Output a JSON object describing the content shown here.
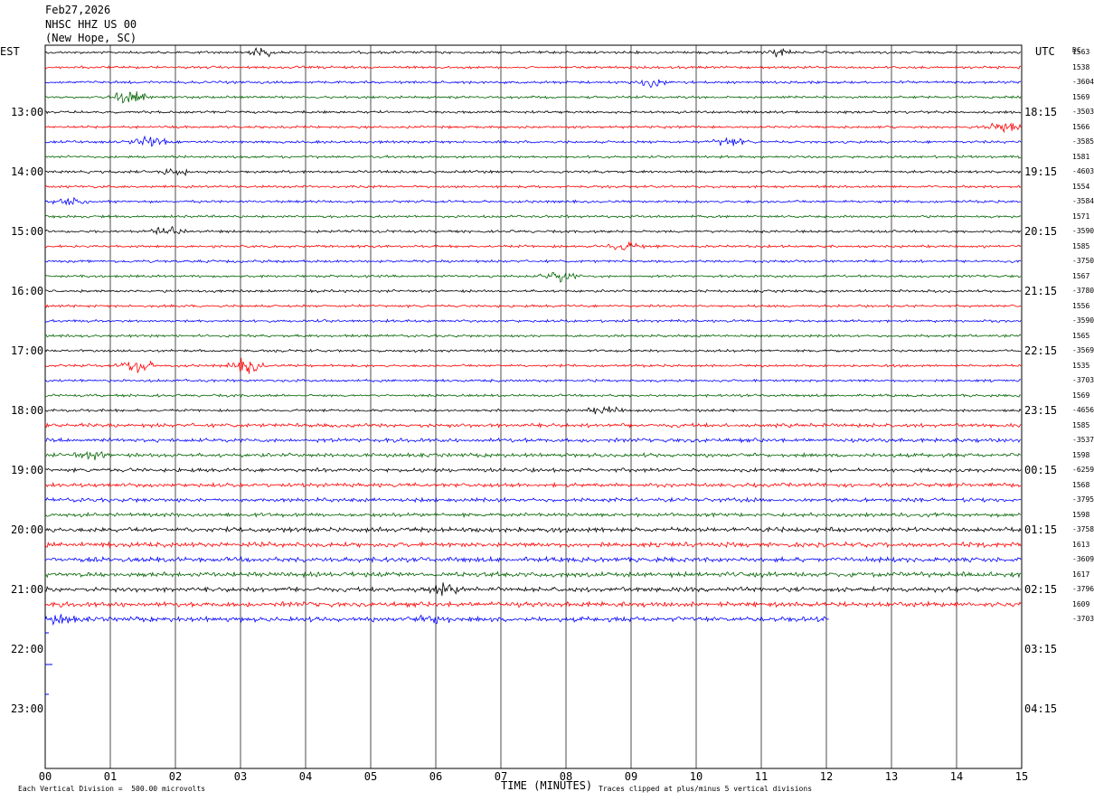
{
  "header": {
    "date": "Feb27,2026",
    "station": "NHSC HHZ US 00",
    "location": "(New Hope, SC)"
  },
  "labels": {
    "left_tz": "EST",
    "right_tz": "UTC",
    "dc": "DC"
  },
  "footer": {
    "scale": "Each Vertical Division =  500.00 microvolts",
    "xlabel": "TIME (MINUTES)",
    "clip": "Traces clipped at plus/minus 5 vertical divisions"
  },
  "colors": {
    "traces": [
      "#000000",
      "#ff0000",
      "#0000ff",
      "#006400"
    ],
    "grid": "#000000"
  },
  "chart_data": {
    "type": "line",
    "title": "NHSC HHZ US 00 (New Hope, SC)",
    "xlabel": "TIME (MINUTES)",
    "ylabel": "",
    "xlim": [
      0,
      15
    ],
    "x_ticks": [
      "00",
      "01",
      "02",
      "03",
      "04",
      "05",
      "06",
      "07",
      "08",
      "09",
      "10",
      "11",
      "12",
      "13",
      "14",
      "15"
    ],
    "left_hours": [
      "13:00",
      "14:00",
      "15:00",
      "16:00",
      "17:00",
      "18:00",
      "19:00",
      "20:00",
      "21:00",
      "22:00",
      "23:00"
    ],
    "right_hours": [
      "18:15",
      "19:15",
      "20:15",
      "21:15",
      "22:15",
      "23:15",
      "00:15",
      "01:15",
      "02:15",
      "03:15",
      "04:15"
    ],
    "dc_values": [
      "1563",
      "1538",
      "-3604",
      "1569",
      "-3503",
      "1566",
      "-3585",
      "1581",
      "-4603",
      "1554",
      "-3584",
      "1571",
      "-3590",
      "1585",
      "-3750",
      "1567",
      "-3780",
      "1556",
      "-3590",
      "1565",
      "-3569",
      "1535",
      "-3703",
      "1569",
      "-4656",
      "1585",
      "-3537",
      "1598",
      "-6259",
      "1568",
      "-3795",
      "1598",
      "-3758",
      "1613",
      "-3609",
      "1617",
      "-3796",
      "1609",
      "-3703"
    ],
    "row_count_full": 38,
    "last_row_end_minute": 12.05,
    "grid": true,
    "events": [
      {
        "row": 0,
        "minute": 3.3,
        "strength": 1.6
      },
      {
        "row": 0,
        "minute": 11.2,
        "strength": 1.5
      },
      {
        "row": 2,
        "minute": 9.3,
        "strength": 1.6
      },
      {
        "row": 3,
        "minute": 1.3,
        "strength": 2.6
      },
      {
        "row": 5,
        "minute": 14.7,
        "strength": 2.2
      },
      {
        "row": 6,
        "minute": 1.6,
        "strength": 2.0
      },
      {
        "row": 6,
        "minute": 10.5,
        "strength": 1.7
      },
      {
        "row": 8,
        "minute": 2.0,
        "strength": 1.5
      },
      {
        "row": 10,
        "minute": 0.4,
        "strength": 1.6
      },
      {
        "row": 12,
        "minute": 1.9,
        "strength": 1.7
      },
      {
        "row": 13,
        "minute": 8.9,
        "strength": 1.6
      },
      {
        "row": 15,
        "minute": 7.9,
        "strength": 2.0
      },
      {
        "row": 21,
        "minute": 1.4,
        "strength": 2.8
      },
      {
        "row": 21,
        "minute": 3.1,
        "strength": 3.0
      },
      {
        "row": 24,
        "minute": 8.6,
        "strength": 1.6
      },
      {
        "row": 27,
        "minute": 0.7,
        "strength": 1.5
      },
      {
        "row": 36,
        "minute": 6.1,
        "strength": 1.6
      },
      {
        "row": 38,
        "minute": 6.0,
        "strength": 1.8
      },
      {
        "row": 38,
        "minute": 0.2,
        "strength": 1.5
      }
    ]
  }
}
